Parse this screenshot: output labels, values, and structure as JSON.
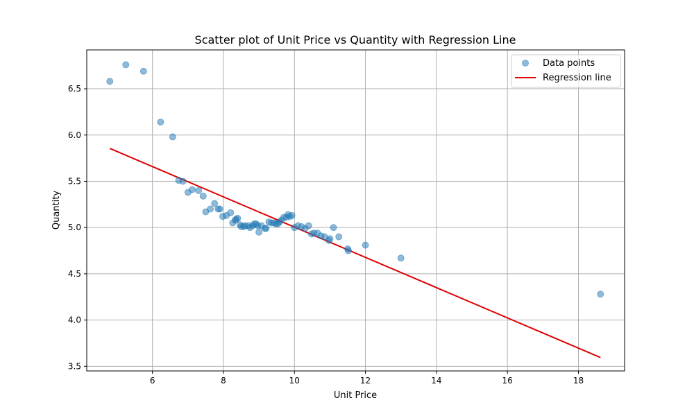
{
  "chart_data": {
    "type": "scatter",
    "title": "Scatter plot of Unit Price vs Quantity with Regression Line",
    "xlabel": "Unit Price",
    "ylabel": "Quantity",
    "xlim": [
      4.15,
      19.3
    ],
    "ylim": [
      3.45,
      6.92
    ],
    "xticks": [
      6,
      8,
      10,
      12,
      14,
      16,
      18
    ],
    "yticks": [
      3.5,
      4.0,
      4.5,
      5.0,
      5.5,
      6.0,
      6.5
    ],
    "xtick_labels": [
      "6",
      "8",
      "10",
      "12",
      "14",
      "16",
      "18"
    ],
    "ytick_labels": [
      "3.5",
      "4.0",
      "4.5",
      "5.0",
      "5.5",
      "6.0",
      "6.5"
    ],
    "grid": true,
    "legend_position": "top-right",
    "colors": {
      "points": "#1f77b4",
      "regression": "#e00000"
    },
    "series": [
      {
        "name": "Data points",
        "kind": "scatter",
        "points": [
          [
            4.8,
            6.58
          ],
          [
            5.25,
            6.76
          ],
          [
            5.75,
            6.69
          ],
          [
            6.23,
            6.14
          ],
          [
            6.57,
            5.98
          ],
          [
            6.74,
            5.51
          ],
          [
            6.86,
            5.5
          ],
          [
            7.0,
            5.38
          ],
          [
            7.12,
            5.41
          ],
          [
            7.3,
            5.4
          ],
          [
            7.43,
            5.34
          ],
          [
            7.5,
            5.17
          ],
          [
            7.63,
            5.2
          ],
          [
            7.75,
            5.26
          ],
          [
            7.85,
            5.2
          ],
          [
            7.9,
            5.2
          ],
          [
            7.98,
            5.12
          ],
          [
            8.08,
            5.13
          ],
          [
            8.2,
            5.16
          ],
          [
            8.26,
            5.05
          ],
          [
            8.33,
            5.08
          ],
          [
            8.36,
            5.09
          ],
          [
            8.4,
            5.1
          ],
          [
            8.47,
            5.03
          ],
          [
            8.5,
            5.01
          ],
          [
            8.57,
            5.01
          ],
          [
            8.61,
            5.02
          ],
          [
            8.7,
            5.02
          ],
          [
            8.75,
            5.0
          ],
          [
            8.82,
            5.02
          ],
          [
            8.87,
            5.04
          ],
          [
            8.92,
            5.04
          ],
          [
            8.97,
            5.02
          ],
          [
            9.0,
            4.95
          ],
          [
            9.07,
            5.02
          ],
          [
            9.17,
            4.99
          ],
          [
            9.2,
            4.99
          ],
          [
            9.28,
            5.06
          ],
          [
            9.35,
            5.05
          ],
          [
            9.42,
            5.05
          ],
          [
            9.48,
            5.04
          ],
          [
            9.53,
            5.04
          ],
          [
            9.58,
            5.06
          ],
          [
            9.63,
            5.08
          ],
          [
            9.7,
            5.11
          ],
          [
            9.77,
            5.11
          ],
          [
            9.82,
            5.14
          ],
          [
            9.87,
            5.12
          ],
          [
            9.93,
            5.13
          ],
          [
            10.0,
            5.0
          ],
          [
            10.1,
            5.02
          ],
          [
            10.2,
            5.01
          ],
          [
            10.3,
            4.99
          ],
          [
            10.4,
            5.02
          ],
          [
            10.48,
            4.93
          ],
          [
            10.55,
            4.94
          ],
          [
            10.65,
            4.94
          ],
          [
            10.75,
            4.91
          ],
          [
            10.85,
            4.9
          ],
          [
            10.97,
            4.86
          ],
          [
            11.0,
            4.88
          ],
          [
            11.1,
            5.0
          ],
          [
            11.25,
            4.9
          ],
          [
            11.5,
            4.77
          ],
          [
            11.52,
            4.75
          ],
          [
            12.0,
            4.81
          ],
          [
            13.0,
            4.67
          ],
          [
            18.62,
            4.28
          ]
        ]
      },
      {
        "name": "Regression line",
        "kind": "line",
        "x": [
          4.8,
          18.62
        ],
        "y": [
          5.855,
          3.595
        ]
      }
    ]
  }
}
